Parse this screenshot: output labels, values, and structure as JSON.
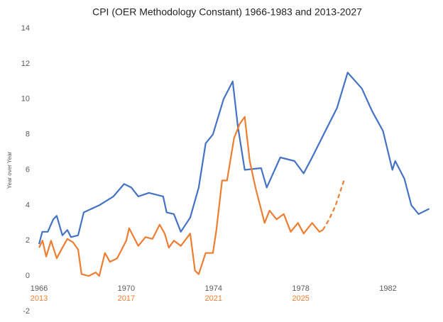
{
  "chart_data": {
    "type": "line",
    "title": "CPI (OER Methodology Constant) 1966-1983  and 2013-2027",
    "y_label": "Year over Year",
    "xlim": [
      1966,
      1984
    ],
    "xticks": [
      1966,
      1970,
      1974,
      1978,
      1982
    ],
    "x2lim": [
      2013,
      2031
    ],
    "x2ticks": [
      2013,
      2017,
      2021,
      2025
    ],
    "ylim": [
      -2,
      14
    ],
    "yticks": [
      -2,
      0,
      2,
      4,
      6,
      8,
      10,
      12,
      14
    ],
    "series": [
      {
        "color": "#4472c4",
        "x": [
          1966.0,
          1966.15,
          1966.4,
          1966.65,
          1966.81,
          1967.07,
          1967.3,
          1967.46,
          1967.79,
          1968.05,
          1968.76,
          1969.41,
          1969.9,
          1970.23,
          1970.55,
          1971.04,
          1971.69,
          1971.85,
          1972.18,
          1972.5,
          1972.93,
          1973.32,
          1973.64,
          1973.97,
          1974.46,
          1974.88,
          1975.11,
          1975.43,
          1976.18,
          1976.44,
          1977.06,
          1977.71,
          1978.13,
          1978.52,
          1979.17,
          1979.66,
          1980.15,
          1980.8,
          1981.28,
          1981.77,
          1982.2,
          1982.33,
          1982.75,
          1983.07,
          1983.4,
          1983.89
        ],
        "values": [
          1.8,
          2.5,
          2.5,
          3.2,
          3.4,
          2.3,
          2.6,
          2.2,
          2.3,
          3.6,
          4.0,
          4.5,
          5.2,
          5.0,
          4.5,
          4.7,
          4.5,
          3.6,
          3.5,
          2.5,
          3.3,
          5.0,
          7.5,
          8.0,
          10.0,
          11.0,
          8.5,
          6.0,
          6.1,
          5.0,
          6.7,
          6.5,
          5.8,
          6.7,
          8.3,
          9.5,
          11.5,
          10.6,
          9.3,
          8.2,
          6.0,
          6.5,
          5.5,
          4.0,
          3.5,
          3.8
        ]
      },
      {
        "color": "#ed7d31",
        "axis": "x2",
        "x": [
          2013.0,
          2013.16,
          2013.33,
          2013.55,
          2013.81,
          2014.07,
          2014.3,
          2014.56,
          2014.79,
          2014.95,
          2015.28,
          2015.6,
          2015.76,
          2016.02,
          2016.25,
          2016.58,
          2017.0,
          2017.13,
          2017.55,
          2017.88,
          2018.2,
          2018.53,
          2018.76,
          2018.95,
          2019.18,
          2019.5,
          2019.93,
          2020.15,
          2020.32,
          2020.64,
          2020.97,
          2021.13,
          2021.39,
          2021.62,
          2021.94,
          2022.2,
          2022.43,
          2022.66,
          2022.92,
          2023.34,
          2023.57,
          2023.89,
          2024.22,
          2024.54,
          2024.87,
          2025.13,
          2025.52,
          2025.85,
          2026.01
        ],
        "values": [
          1.6,
          2.0,
          1.1,
          2.0,
          1.0,
          1.6,
          2.1,
          1.9,
          1.5,
          0.1,
          0.0,
          0.2,
          0.0,
          1.3,
          0.8,
          1.0,
          2.0,
          2.7,
          1.7,
          2.2,
          2.1,
          2.9,
          2.4,
          1.6,
          2.0,
          1.7,
          2.4,
          0.3,
          0.1,
          1.3,
          1.3,
          2.6,
          5.4,
          5.4,
          7.8,
          8.6,
          9.0,
          6.5,
          5.0,
          3.0,
          3.7,
          3.2,
          3.5,
          2.5,
          3.0,
          2.4,
          3.0,
          2.5,
          2.6
        ]
      },
      {
        "color": "#ed7d31",
        "axis": "x2",
        "dashed": true,
        "x": [
          2026.01,
          2026.3,
          2026.6,
          2026.98
        ],
        "values": [
          2.6,
          3.2,
          4.0,
          5.4
        ]
      }
    ]
  }
}
